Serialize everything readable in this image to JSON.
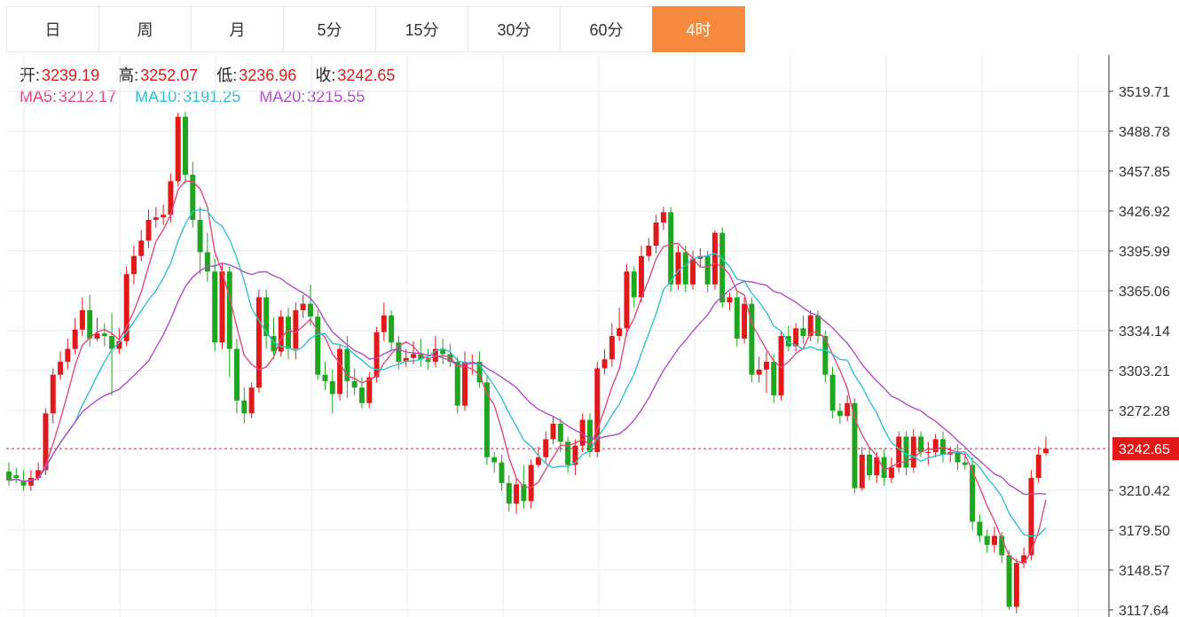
{
  "tabs": [
    {
      "label": "日",
      "active": false
    },
    {
      "label": "周",
      "active": false
    },
    {
      "label": "月",
      "active": false
    },
    {
      "label": "5分",
      "active": false
    },
    {
      "label": "15分",
      "active": false
    },
    {
      "label": "30分",
      "active": false
    },
    {
      "label": "60分",
      "active": false
    },
    {
      "label": "4时",
      "active": true
    }
  ],
  "ohlc": {
    "open_label": "开:",
    "open": "3239.19",
    "high_label": "高:",
    "high": "3252.07",
    "low_label": "低:",
    "low": "3236.96",
    "close_label": "收:",
    "close": "3242.65"
  },
  "ma": {
    "ma5_label": "MA5:",
    "ma5": "3212.17",
    "ma10_label": "MA10:",
    "ma10": "3191.25",
    "ma20_label": "MA20:",
    "ma20": "3215.55"
  },
  "colors": {
    "up": "#e31919",
    "down": "#1ea61e",
    "ma5": "#e3487c",
    "ma10": "#2fc2cf",
    "ma20": "#b04ec7",
    "active_tab": "#f68a3c",
    "grid": "#e3ebf2"
  },
  "chart_data": {
    "type": "candlestick",
    "y_ticks": [
      "3519.71",
      "3488.78",
      "3457.85",
      "3426.92",
      "3395.99",
      "3365.06",
      "3334.14",
      "3303.21",
      "3272.28",
      "3210.42",
      "3179.50",
      "3148.57",
      "3117.64"
    ],
    "ylim": [
      3115,
      3540
    ],
    "last_price": "3242.65",
    "candles": [
      [
        3225,
        3218,
        3232,
        3214
      ],
      [
        3222,
        3220,
        3228,
        3216
      ],
      [
        3218,
        3214,
        3226,
        3210
      ],
      [
        3214,
        3220,
        3226,
        3210
      ],
      [
        3220,
        3226,
        3232,
        3218
      ],
      [
        3226,
        3270,
        3274,
        3222
      ],
      [
        3270,
        3300,
        3305,
        3262
      ],
      [
        3300,
        3310,
        3318,
        3296
      ],
      [
        3310,
        3320,
        3328,
        3304
      ],
      [
        3320,
        3335,
        3344,
        3316
      ],
      [
        3335,
        3350,
        3360,
        3330
      ],
      [
        3350,
        3328,
        3362,
        3322
      ],
      [
        3328,
        3332,
        3344,
        3326
      ],
      [
        3332,
        3330,
        3340,
        3322
      ],
      [
        3330,
        3320,
        3348,
        3284
      ],
      [
        3320,
        3326,
        3336,
        3316
      ],
      [
        3326,
        3378,
        3384,
        3322
      ],
      [
        3378,
        3392,
        3400,
        3370
      ],
      [
        3392,
        3404,
        3412,
        3388
      ],
      [
        3404,
        3420,
        3428,
        3398
      ],
      [
        3420,
        3422,
        3430,
        3414
      ],
      [
        3422,
        3424,
        3432,
        3416
      ],
      [
        3424,
        3450,
        3456,
        3418
      ],
      [
        3450,
        3500,
        3503,
        3446
      ],
      [
        3500,
        3455,
        3504,
        3448
      ],
      [
        3455,
        3420,
        3465,
        3414
      ],
      [
        3420,
        3395,
        3430,
        3378
      ],
      [
        3395,
        3380,
        3410,
        3372
      ],
      [
        3380,
        3325,
        3390,
        3318
      ],
      [
        3325,
        3380,
        3386,
        3320
      ],
      [
        3380,
        3320,
        3384,
        3298
      ],
      [
        3320,
        3280,
        3328,
        3270
      ],
      [
        3280,
        3270,
        3290,
        3262
      ],
      [
        3270,
        3290,
        3294,
        3266
      ],
      [
        3290,
        3360,
        3366,
        3286
      ],
      [
        3360,
        3330,
        3366,
        3320
      ],
      [
        3330,
        3318,
        3344,
        3312
      ],
      [
        3318,
        3345,
        3350,
        3314
      ],
      [
        3345,
        3320,
        3352,
        3312
      ],
      [
        3320,
        3350,
        3356,
        3312
      ],
      [
        3350,
        3355,
        3362,
        3344
      ],
      [
        3355,
        3345,
        3370,
        3338
      ],
      [
        3345,
        3300,
        3350,
        3296
      ],
      [
        3300,
        3295,
        3310,
        3288
      ],
      [
        3295,
        3285,
        3304,
        3270
      ],
      [
        3285,
        3320,
        3324,
        3280
      ],
      [
        3320,
        3295,
        3330,
        3282
      ],
      [
        3295,
        3290,
        3305,
        3284
      ],
      [
        3290,
        3278,
        3298,
        3274
      ],
      [
        3278,
        3298,
        3302,
        3274
      ],
      [
        3298,
        3333,
        3337,
        3294
      ],
      [
        3333,
        3346,
        3356,
        3326
      ],
      [
        3346,
        3325,
        3350,
        3318
      ],
      [
        3325,
        3310,
        3330,
        3304
      ],
      [
        3310,
        3313,
        3320,
        3306
      ],
      [
        3313,
        3316,
        3326,
        3308
      ],
      [
        3316,
        3312,
        3328,
        3306
      ],
      [
        3312,
        3310,
        3320,
        3304
      ],
      [
        3310,
        3320,
        3330,
        3306
      ],
      [
        3320,
        3316,
        3328,
        3308
      ],
      [
        3316,
        3310,
        3324,
        3306
      ],
      [
        3310,
        3276,
        3314,
        3270
      ],
      [
        3276,
        3310,
        3318,
        3272
      ],
      [
        3310,
        3310,
        3316,
        3300
      ],
      [
        3310,
        3294,
        3318,
        3290
      ],
      [
        3294,
        3236,
        3300,
        3230
      ],
      [
        3236,
        3232,
        3240,
        3224
      ],
      [
        3232,
        3216,
        3238,
        3210
      ],
      [
        3216,
        3200,
        3222,
        3194
      ],
      [
        3200,
        3215,
        3220,
        3192
      ],
      [
        3215,
        3202,
        3230,
        3196
      ],
      [
        3202,
        3230,
        3234,
        3196
      ],
      [
        3230,
        3236,
        3244,
        3228
      ],
      [
        3236,
        3250,
        3256,
        3232
      ],
      [
        3250,
        3262,
        3268,
        3246
      ],
      [
        3262,
        3248,
        3266,
        3240
      ],
      [
        3248,
        3230,
        3252,
        3224
      ],
      [
        3230,
        3245,
        3250,
        3222
      ],
      [
        3245,
        3265,
        3270,
        3240
      ],
      [
        3265,
        3240,
        3270,
        3236
      ],
      [
        3240,
        3305,
        3310,
        3236
      ],
      [
        3305,
        3312,
        3320,
        3300
      ],
      [
        3312,
        3330,
        3340,
        3306
      ],
      [
        3330,
        3336,
        3352,
        3326
      ],
      [
        3336,
        3380,
        3386,
        3330
      ],
      [
        3380,
        3360,
        3384,
        3352
      ],
      [
        3360,
        3392,
        3400,
        3356
      ],
      [
        3392,
        3400,
        3406,
        3388
      ],
      [
        3400,
        3418,
        3424,
        3394
      ],
      [
        3418,
        3426,
        3430,
        3412
      ],
      [
        3426,
        3370,
        3430,
        3364
      ],
      [
        3370,
        3395,
        3400,
        3366
      ],
      [
        3395,
        3370,
        3400,
        3364
      ],
      [
        3370,
        3390,
        3396,
        3366
      ],
      [
        3390,
        3392,
        3398,
        3384
      ],
      [
        3392,
        3370,
        3396,
        3364
      ],
      [
        3370,
        3410,
        3412,
        3366
      ],
      [
        3410,
        3356,
        3414,
        3352
      ],
      [
        3356,
        3360,
        3364,
        3350
      ],
      [
        3360,
        3328,
        3364,
        3322
      ],
      [
        3328,
        3355,
        3360,
        3324
      ],
      [
        3355,
        3300,
        3360,
        3294
      ],
      [
        3300,
        3304,
        3314,
        3294
      ],
      [
        3304,
        3310,
        3318,
        3286
      ],
      [
        3310,
        3284,
        3316,
        3278
      ],
      [
        3284,
        3330,
        3334,
        3280
      ],
      [
        3330,
        3322,
        3338,
        3318
      ],
      [
        3322,
        3336,
        3340,
        3318
      ],
      [
        3336,
        3330,
        3346,
        3324
      ],
      [
        3330,
        3346,
        3350,
        3326
      ],
      [
        3346,
        3330,
        3350,
        3324
      ],
      [
        3330,
        3300,
        3334,
        3294
      ],
      [
        3300,
        3272,
        3306,
        3266
      ],
      [
        3272,
        3268,
        3278,
        3262
      ],
      [
        3268,
        3278,
        3284,
        3264
      ],
      [
        3278,
        3212,
        3282,
        3208
      ],
      [
        3212,
        3238,
        3244,
        3210
      ],
      [
        3238,
        3222,
        3244,
        3218
      ],
      [
        3222,
        3236,
        3240,
        3216
      ],
      [
        3236,
        3220,
        3242,
        3214
      ],
      [
        3220,
        3228,
        3236,
        3216
      ],
      [
        3228,
        3252,
        3256,
        3224
      ],
      [
        3252,
        3228,
        3256,
        3222
      ],
      [
        3228,
        3252,
        3258,
        3224
      ],
      [
        3252,
        3240,
        3256,
        3236
      ],
      [
        3240,
        3240,
        3248,
        3230
      ],
      [
        3240,
        3250,
        3254,
        3236
      ],
      [
        3250,
        3238,
        3256,
        3232
      ],
      [
        3238,
        3240,
        3244,
        3232
      ],
      [
        3240,
        3232,
        3246,
        3226
      ],
      [
        3232,
        3230,
        3240,
        3226
      ],
      [
        3230,
        3186,
        3236,
        3180
      ],
      [
        3186,
        3175,
        3192,
        3170
      ],
      [
        3175,
        3168,
        3180,
        3162
      ],
      [
        3168,
        3175,
        3182,
        3162
      ],
      [
        3175,
        3160,
        3178,
        3154
      ],
      [
        3160,
        3120,
        3164,
        3118
      ],
      [
        3120,
        3154,
        3158,
        3115
      ],
      [
        3154,
        3160,
        3166,
        3150
      ],
      [
        3160,
        3220,
        3226,
        3156
      ],
      [
        3220,
        3238,
        3244,
        3216
      ],
      [
        3239.19,
        3242.65,
        3252.07,
        3236.96
      ]
    ]
  }
}
